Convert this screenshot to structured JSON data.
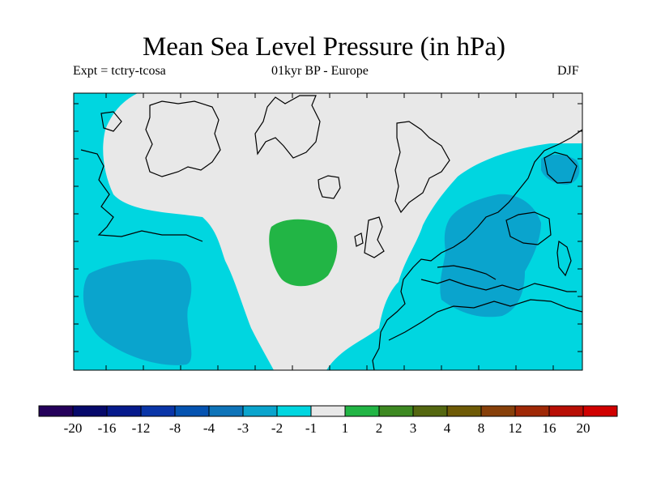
{
  "title": "Mean Sea Level Pressure (in hPa)",
  "subtitle_left": "Expt = tctry-tcosa",
  "subtitle_center": "01kyr BP - Europe",
  "subtitle_right": "DJF",
  "colorbar": {
    "colors": [
      "#24005a",
      "#06096b",
      "#061a8c",
      "#0a35a8",
      "#0553b1",
      "#0e74b9",
      "#0aa4cd",
      "#00d6e0",
      "#e8e8e8",
      "#22b545",
      "#3d8921",
      "#546710",
      "#6e5a06",
      "#87400a",
      "#9f2806",
      "#b80e05",
      "#d00000"
    ],
    "labels": [
      "-20",
      "-16",
      "-12",
      "-8",
      "-4",
      "-3",
      "-2",
      "-1",
      "1",
      "2",
      "3",
      "4",
      "8",
      "12",
      "16",
      "20"
    ]
  },
  "map": {
    "background": "#e8e8e8",
    "legend_colors": {
      "neg_1_2": "#00d6e0",
      "neg_2_3": "#0aa4cd",
      "pos_1_2": "#22b545"
    }
  }
}
